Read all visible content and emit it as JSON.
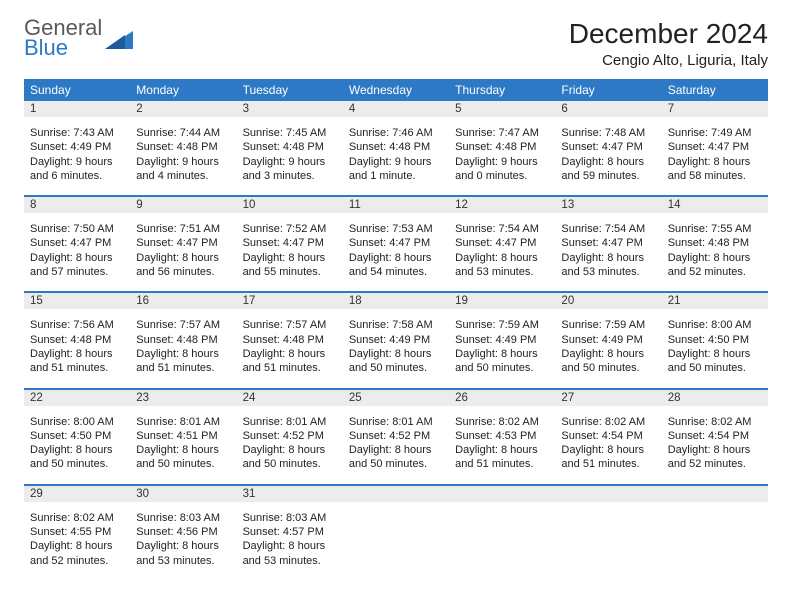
{
  "logo": {
    "word1": "General",
    "word2": "Blue"
  },
  "title": "December 2024",
  "location": "Cengio Alto, Liguria, Italy",
  "colors": {
    "header_bg": "#2d79c5",
    "header_text": "#ffffff",
    "strip_bg": "#ececec",
    "rule": "#2d79c5",
    "logo_gray": "#5a5a5a",
    "logo_blue": "#2d79c5"
  },
  "day_headers": [
    "Sunday",
    "Monday",
    "Tuesday",
    "Wednesday",
    "Thursday",
    "Friday",
    "Saturday"
  ],
  "weeks": [
    [
      {
        "n": "1",
        "sr": "Sunrise: 7:43 AM",
        "ss": "Sunset: 4:49 PM",
        "d1": "Daylight: 9 hours",
        "d2": "and 6 minutes."
      },
      {
        "n": "2",
        "sr": "Sunrise: 7:44 AM",
        "ss": "Sunset: 4:48 PM",
        "d1": "Daylight: 9 hours",
        "d2": "and 4 minutes."
      },
      {
        "n": "3",
        "sr": "Sunrise: 7:45 AM",
        "ss": "Sunset: 4:48 PM",
        "d1": "Daylight: 9 hours",
        "d2": "and 3 minutes."
      },
      {
        "n": "4",
        "sr": "Sunrise: 7:46 AM",
        "ss": "Sunset: 4:48 PM",
        "d1": "Daylight: 9 hours",
        "d2": "and 1 minute."
      },
      {
        "n": "5",
        "sr": "Sunrise: 7:47 AM",
        "ss": "Sunset: 4:48 PM",
        "d1": "Daylight: 9 hours",
        "d2": "and 0 minutes."
      },
      {
        "n": "6",
        "sr": "Sunrise: 7:48 AM",
        "ss": "Sunset: 4:47 PM",
        "d1": "Daylight: 8 hours",
        "d2": "and 59 minutes."
      },
      {
        "n": "7",
        "sr": "Sunrise: 7:49 AM",
        "ss": "Sunset: 4:47 PM",
        "d1": "Daylight: 8 hours",
        "d2": "and 58 minutes."
      }
    ],
    [
      {
        "n": "8",
        "sr": "Sunrise: 7:50 AM",
        "ss": "Sunset: 4:47 PM",
        "d1": "Daylight: 8 hours",
        "d2": "and 57 minutes."
      },
      {
        "n": "9",
        "sr": "Sunrise: 7:51 AM",
        "ss": "Sunset: 4:47 PM",
        "d1": "Daylight: 8 hours",
        "d2": "and 56 minutes."
      },
      {
        "n": "10",
        "sr": "Sunrise: 7:52 AM",
        "ss": "Sunset: 4:47 PM",
        "d1": "Daylight: 8 hours",
        "d2": "and 55 minutes."
      },
      {
        "n": "11",
        "sr": "Sunrise: 7:53 AM",
        "ss": "Sunset: 4:47 PM",
        "d1": "Daylight: 8 hours",
        "d2": "and 54 minutes."
      },
      {
        "n": "12",
        "sr": "Sunrise: 7:54 AM",
        "ss": "Sunset: 4:47 PM",
        "d1": "Daylight: 8 hours",
        "d2": "and 53 minutes."
      },
      {
        "n": "13",
        "sr": "Sunrise: 7:54 AM",
        "ss": "Sunset: 4:47 PM",
        "d1": "Daylight: 8 hours",
        "d2": "and 53 minutes."
      },
      {
        "n": "14",
        "sr": "Sunrise: 7:55 AM",
        "ss": "Sunset: 4:48 PM",
        "d1": "Daylight: 8 hours",
        "d2": "and 52 minutes."
      }
    ],
    [
      {
        "n": "15",
        "sr": "Sunrise: 7:56 AM",
        "ss": "Sunset: 4:48 PM",
        "d1": "Daylight: 8 hours",
        "d2": "and 51 minutes."
      },
      {
        "n": "16",
        "sr": "Sunrise: 7:57 AM",
        "ss": "Sunset: 4:48 PM",
        "d1": "Daylight: 8 hours",
        "d2": "and 51 minutes."
      },
      {
        "n": "17",
        "sr": "Sunrise: 7:57 AM",
        "ss": "Sunset: 4:48 PM",
        "d1": "Daylight: 8 hours",
        "d2": "and 51 minutes."
      },
      {
        "n": "18",
        "sr": "Sunrise: 7:58 AM",
        "ss": "Sunset: 4:49 PM",
        "d1": "Daylight: 8 hours",
        "d2": "and 50 minutes."
      },
      {
        "n": "19",
        "sr": "Sunrise: 7:59 AM",
        "ss": "Sunset: 4:49 PM",
        "d1": "Daylight: 8 hours",
        "d2": "and 50 minutes."
      },
      {
        "n": "20",
        "sr": "Sunrise: 7:59 AM",
        "ss": "Sunset: 4:49 PM",
        "d1": "Daylight: 8 hours",
        "d2": "and 50 minutes."
      },
      {
        "n": "21",
        "sr": "Sunrise: 8:00 AM",
        "ss": "Sunset: 4:50 PM",
        "d1": "Daylight: 8 hours",
        "d2": "and 50 minutes."
      }
    ],
    [
      {
        "n": "22",
        "sr": "Sunrise: 8:00 AM",
        "ss": "Sunset: 4:50 PM",
        "d1": "Daylight: 8 hours",
        "d2": "and 50 minutes."
      },
      {
        "n": "23",
        "sr": "Sunrise: 8:01 AM",
        "ss": "Sunset: 4:51 PM",
        "d1": "Daylight: 8 hours",
        "d2": "and 50 minutes."
      },
      {
        "n": "24",
        "sr": "Sunrise: 8:01 AM",
        "ss": "Sunset: 4:52 PM",
        "d1": "Daylight: 8 hours",
        "d2": "and 50 minutes."
      },
      {
        "n": "25",
        "sr": "Sunrise: 8:01 AM",
        "ss": "Sunset: 4:52 PM",
        "d1": "Daylight: 8 hours",
        "d2": "and 50 minutes."
      },
      {
        "n": "26",
        "sr": "Sunrise: 8:02 AM",
        "ss": "Sunset: 4:53 PM",
        "d1": "Daylight: 8 hours",
        "d2": "and 51 minutes."
      },
      {
        "n": "27",
        "sr": "Sunrise: 8:02 AM",
        "ss": "Sunset: 4:54 PM",
        "d1": "Daylight: 8 hours",
        "d2": "and 51 minutes."
      },
      {
        "n": "28",
        "sr": "Sunrise: 8:02 AM",
        "ss": "Sunset: 4:54 PM",
        "d1": "Daylight: 8 hours",
        "d2": "and 52 minutes."
      }
    ],
    [
      {
        "n": "29",
        "sr": "Sunrise: 8:02 AM",
        "ss": "Sunset: 4:55 PM",
        "d1": "Daylight: 8 hours",
        "d2": "and 52 minutes."
      },
      {
        "n": "30",
        "sr": "Sunrise: 8:03 AM",
        "ss": "Sunset: 4:56 PM",
        "d1": "Daylight: 8 hours",
        "d2": "and 53 minutes."
      },
      {
        "n": "31",
        "sr": "Sunrise: 8:03 AM",
        "ss": "Sunset: 4:57 PM",
        "d1": "Daylight: 8 hours",
        "d2": "and 53 minutes."
      },
      null,
      null,
      null,
      null
    ]
  ]
}
